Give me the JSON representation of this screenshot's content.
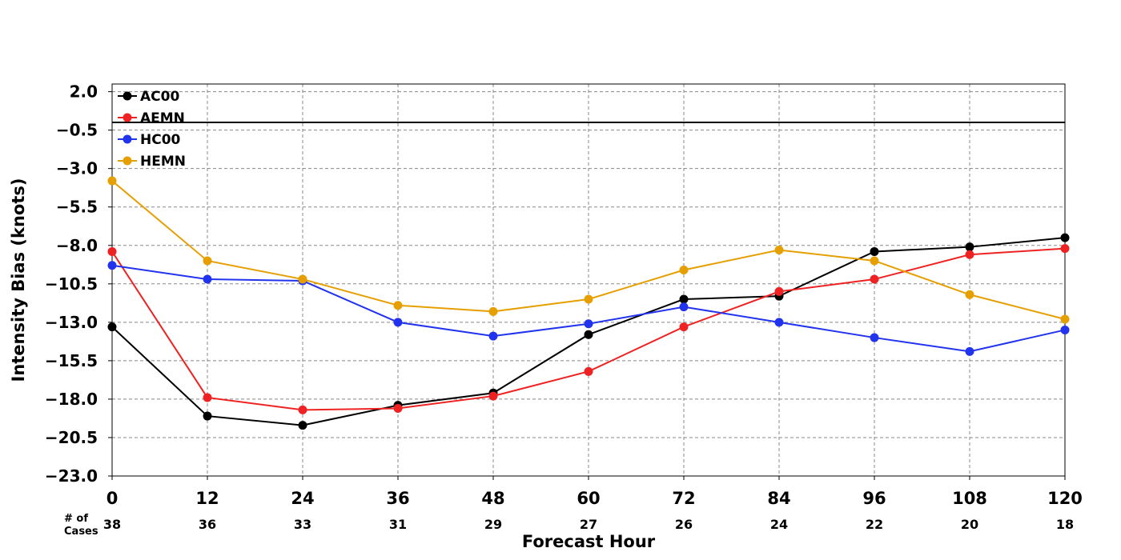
{
  "chart_data": {
    "type": "line",
    "xlabel": "Forecast Hour",
    "ylabel": "Intensity Bias (knots)",
    "x": [
      0,
      12,
      24,
      36,
      48,
      60,
      72,
      84,
      96,
      108,
      120
    ],
    "x_tick_labels": [
      "0",
      "12",
      "24",
      "36",
      "48",
      "60",
      "72",
      "84",
      "96",
      "108",
      "120"
    ],
    "y_ticks": [
      2.0,
      -0.5,
      -3.0,
      -5.5,
      -8.0,
      -10.5,
      -13.0,
      -15.5,
      -18.0,
      -20.5,
      -23.0
    ],
    "y_tick_labels": [
      "2.0",
      "−0.5",
      "−3.0",
      "−5.5",
      "−8.0",
      "−10.5",
      "−13.0",
      "−15.5",
      "−18.0",
      "−20.5",
      "−23.0"
    ],
    "xlim": [
      0,
      120
    ],
    "ylim": [
      -23.0,
      2.5
    ],
    "grid": true,
    "reference_line_y": 0,
    "cases_label": "# of\nCases",
    "cases": [
      "38",
      "36",
      "33",
      "31",
      "29",
      "27",
      "26",
      "24",
      "22",
      "20",
      "18"
    ],
    "legend_position": "upper-left",
    "series": [
      {
        "name": "AC00",
        "color": "#000000",
        "values": [
          -13.3,
          -19.1,
          -19.7,
          -18.4,
          -17.6,
          -13.8,
          -11.5,
          -11.3,
          -8.4,
          -8.1,
          -7.5
        ]
      },
      {
        "name": "AEMN",
        "color": "#ee2222",
        "values": [
          -8.4,
          -17.9,
          -18.7,
          -18.6,
          -17.8,
          -16.2,
          -13.3,
          -11.0,
          -10.2,
          -8.6,
          -8.2
        ]
      },
      {
        "name": "HC00",
        "color": "#2233ee",
        "values": [
          -9.3,
          -10.2,
          -10.3,
          -13.0,
          -13.9,
          -13.1,
          -12.0,
          -13.0,
          -14.0,
          -14.9,
          -13.5
        ]
      },
      {
        "name": "HEMN",
        "color": "#e69f00",
        "values": [
          -3.8,
          -9.0,
          -10.2,
          -11.9,
          -12.3,
          -11.5,
          -9.6,
          -8.3,
          -9.0,
          -11.2,
          -12.8
        ]
      }
    ]
  }
}
